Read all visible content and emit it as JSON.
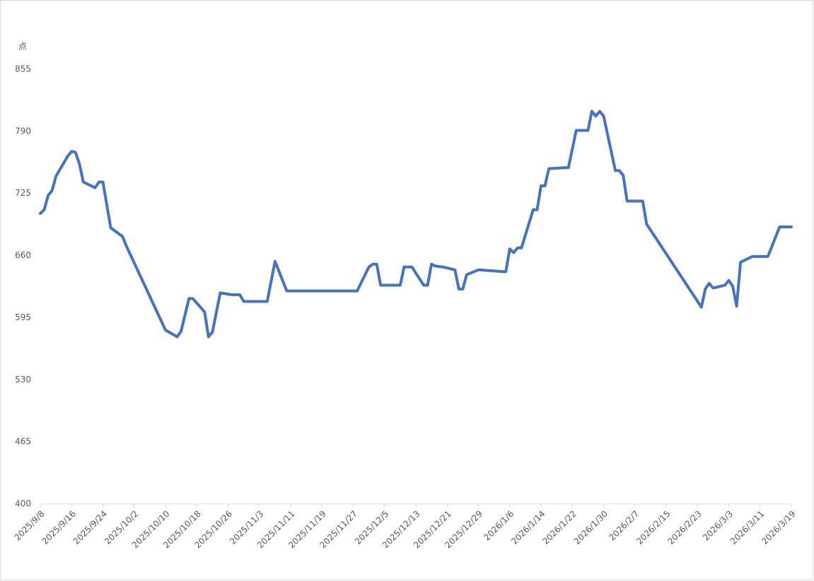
{
  "chart_data": {
    "type": "line",
    "y_label": "点",
    "x": [
      "2025/9/8",
      "2025/9/9",
      "2025/9/10",
      "2025/9/11",
      "2025/9/12",
      "2025/9/15",
      "2025/9/16",
      "2025/9/17",
      "2025/9/18",
      "2025/9/19",
      "2025/9/22",
      "2025/9/23",
      "2025/9/24",
      "2025/9/26",
      "2025/9/29",
      "2025/9/30",
      "2025/10/10",
      "2025/10/13",
      "2025/10/14",
      "2025/10/16",
      "2025/10/17",
      "2025/10/20",
      "2025/10/21",
      "2025/10/22",
      "2025/10/24",
      "2025/10/27",
      "2025/10/29",
      "2025/10/30",
      "2025/11/5",
      "2025/11/7",
      "2025/11/10",
      "2025/11/28",
      "2025/12/1",
      "2025/12/2",
      "2025/12/3",
      "2025/12/4",
      "2025/12/9",
      "2025/12/10",
      "2025/12/12",
      "2025/12/15",
      "2025/12/16",
      "2025/12/17",
      "2025/12/18",
      "2025/12/20",
      "2025/12/22",
      "2025/12/23",
      "2025/12/24",
      "2025/12/25",
      "2025/12/26",
      "2025/12/29",
      "2026/1/5",
      "2026/1/6",
      "2026/1/7",
      "2026/1/8",
      "2026/1/9",
      "2026/1/12",
      "2026/1/13",
      "2026/1/14",
      "2026/1/15",
      "2026/1/16",
      "2026/1/20",
      "2026/1/21",
      "2026/1/23",
      "2026/1/26",
      "2026/1/27",
      "2026/1/28",
      "2026/1/29",
      "2026/1/30",
      "2026/2/2",
      "2026/2/3",
      "2026/2/4",
      "2026/2/5",
      "2026/2/9",
      "2026/2/10",
      "2026/2/24",
      "2026/2/25",
      "2026/2/26",
      "2026/2/27",
      "2026/3/2",
      "2026/3/3",
      "2026/3/4",
      "2026/3/5",
      "2026/3/6",
      "2026/3/9",
      "2026/3/13",
      "2026/3/16",
      "2026/3/19"
    ],
    "series": [
      {
        "color": "#4472c4",
        "values": [
          704,
          708,
          723,
          728,
          743,
          764,
          769,
          768,
          756,
          737,
          731,
          737,
          737,
          689,
          680,
          670,
          582,
          575,
          581,
          615,
          615,
          601,
          575,
          580,
          621,
          619,
          619,
          612,
          612,
          654,
          623,
          623,
          648,
          651,
          651,
          629,
          629,
          648,
          648,
          629,
          629,
          651,
          649,
          648,
          646,
          645,
          625,
          625,
          640,
          645,
          643,
          667,
          663,
          668,
          668,
          708,
          708,
          733,
          733,
          751,
          752,
          752,
          791,
          791,
          811,
          806,
          811,
          806,
          749,
          749,
          744,
          717,
          717,
          693,
          606,
          625,
          631,
          626,
          629,
          634,
          628,
          607,
          653,
          659,
          659,
          690,
          690
        ]
      }
    ],
    "xlim": [
      "2025/9/8",
      "2026/3/19"
    ],
    "xticks": [
      "2025/9/8",
      "2025/9/16",
      "2025/9/24",
      "2025/10/2",
      "2025/10/10",
      "2025/10/18",
      "2025/10/26",
      "2025/11/3",
      "2025/11/11",
      "2025/11/19",
      "2025/11/27",
      "2025/12/5",
      "2025/12/13",
      "2025/12/21",
      "2025/12/29",
      "2026/1/6",
      "2026/1/14",
      "2026/1/22",
      "2026/1/30",
      "2026/2/7",
      "2026/2/15",
      "2026/2/23",
      "2026/3/3",
      "2026/3/11",
      "2026/3/19"
    ],
    "ylim": [
      400,
      855
    ],
    "yticks": [
      400,
      465,
      530,
      595,
      660,
      725,
      790,
      855
    ],
    "grid": false
  }
}
